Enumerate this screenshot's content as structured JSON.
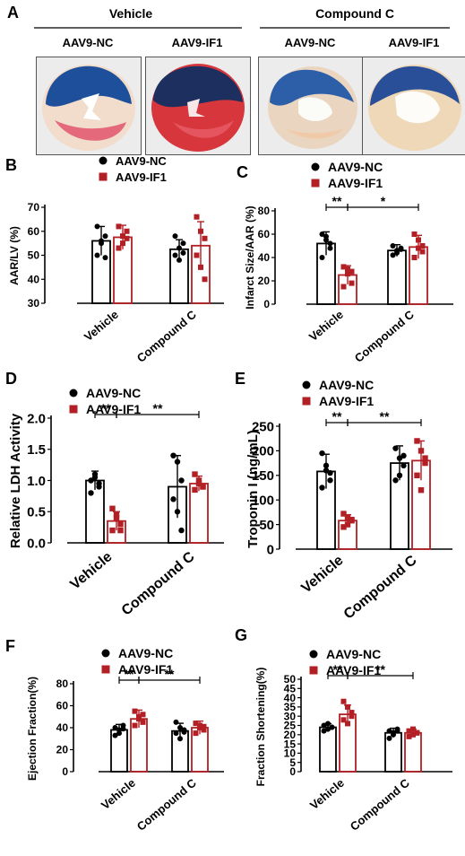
{
  "panel_a": {
    "label": "A",
    "groups": [
      {
        "name": "Vehicle",
        "hearts": [
          "AAV9-NC",
          "AAV9-IF1"
        ]
      },
      {
        "name": "Compound C",
        "hearts": [
          "AAV9-NC",
          "AAV9-IF1"
        ]
      }
    ]
  },
  "colors": {
    "nc": "#000000",
    "if1": "#b21f24"
  },
  "chart_data": [
    {
      "panel": "B",
      "type": "bar",
      "ylabel": "AAR/LV (%)",
      "ylim": [
        30,
        70
      ],
      "yticks": [
        30,
        40,
        50,
        60,
        70
      ],
      "categories": [
        "Vehicle",
        "Compound C"
      ],
      "series": [
        {
          "name": "AAV9-NC",
          "values": [
            56,
            52.5
          ],
          "sd": [
            6,
            4
          ],
          "points": [
            [
              62,
              56,
              58,
              50,
              55,
              49
            ],
            [
              58,
              53,
              55,
              50,
              48,
              51
            ]
          ]
        },
        {
          "name": "AAV9-IF1",
          "values": [
            57.5,
            54
          ],
          "sd": [
            5,
            10
          ],
          "points": [
            [
              62,
              55,
              60,
              53,
              58,
              57
            ],
            [
              66,
              60,
              57,
              50,
              45,
              40
            ]
          ]
        }
      ],
      "significance": []
    },
    {
      "panel": "C",
      "type": "bar",
      "ylabel": "Infarct Size/AAR (%)",
      "ylim": [
        0,
        80
      ],
      "yticks": [
        0,
        20,
        40,
        60,
        80
      ],
      "categories": [
        "Vehicle",
        "Compound C"
      ],
      "series": [
        {
          "name": "AAV9-NC",
          "values": [
            52,
            46
          ],
          "sd": [
            10,
            5
          ],
          "points": [
            [
              60,
              55,
              48,
              40,
              58,
              52
            ],
            [
              50,
              44,
              48,
              42,
              46,
              47
            ]
          ]
        },
        {
          "name": "AAV9-IF1",
          "values": [
            25,
            49
          ],
          "sd": [
            8,
            10
          ],
          "points": [
            [
              32,
              26,
              18,
              15,
              30,
              28
            ],
            [
              60,
              55,
              45,
              40,
              48,
              50
            ]
          ]
        }
      ],
      "significance": [
        {
          "from": [
            0,
            0
          ],
          "to": [
            0,
            1
          ],
          "label": "**"
        },
        {
          "from": [
            0,
            1
          ],
          "to": [
            1,
            1
          ],
          "label": "*"
        }
      ]
    },
    {
      "panel": "D",
      "type": "bar",
      "ylabel": "Relative LDH Activity",
      "ylim": [
        0,
        2.0
      ],
      "yticks": [
        0.0,
        0.5,
        1.0,
        1.5,
        2.0
      ],
      "categories": [
        "Vehicle",
        "Compound C"
      ],
      "series": [
        {
          "name": "AAV9-NC",
          "values": [
            1.0,
            0.9
          ],
          "sd": [
            0.15,
            0.5
          ],
          "points": [
            [
              1.0,
              1.1,
              0.9,
              0.8,
              1.05,
              0.95
            ],
            [
              1.4,
              1.3,
              1.0,
              0.7,
              0.5,
              0.2
            ]
          ]
        },
        {
          "name": "AAV9-IF1",
          "values": [
            0.35,
            0.95
          ],
          "sd": [
            0.15,
            0.12
          ],
          "points": [
            [
              0.55,
              0.45,
              0.3,
              0.2,
              0.4,
              0.2
            ],
            [
              1.1,
              1.0,
              0.9,
              0.85,
              0.95,
              0.9
            ]
          ]
        }
      ],
      "significance": [
        {
          "from": [
            0,
            0
          ],
          "to": [
            0,
            1
          ],
          "label": "**"
        },
        {
          "from": [
            0,
            1
          ],
          "to": [
            1,
            1
          ],
          "label": "**"
        }
      ]
    },
    {
      "panel": "E",
      "type": "bar",
      "ylabel": "Troponin I (ng/mL)",
      "ylim": [
        0,
        250
      ],
      "yticks": [
        0,
        50,
        100,
        150,
        200,
        250
      ],
      "categories": [
        "Vehicle",
        "Compound C"
      ],
      "series": [
        {
          "name": "AAV9-NC",
          "values": [
            158,
            175
          ],
          "sd": [
            35,
            35
          ],
          "points": [
            [
              195,
              170,
              155,
              125,
              160,
              140
            ],
            [
              205,
              185,
              170,
              140,
              150,
              190
            ]
          ]
        },
        {
          "name": "AAV9-IF1",
          "values": [
            58,
            180
          ],
          "sd": [
            12,
            40
          ],
          "points": [
            [
              72,
              65,
              58,
              45,
              50,
              60
            ],
            [
              220,
              200,
              175,
              150,
              120,
              185
            ]
          ]
        }
      ],
      "significance": [
        {
          "from": [
            0,
            0
          ],
          "to": [
            0,
            1
          ],
          "label": "**"
        },
        {
          "from": [
            0,
            1
          ],
          "to": [
            1,
            1
          ],
          "label": "**"
        }
      ]
    },
    {
      "panel": "F",
      "type": "bar",
      "ylabel": "Ejection Fraction(%)",
      "ylim": [
        0,
        80
      ],
      "yticks": [
        0,
        20,
        40,
        60,
        80
      ],
      "categories": [
        "Vehicle",
        "Compound C"
      ],
      "series": [
        {
          "name": "AAV9-NC",
          "values": [
            38,
            37
          ],
          "sd": [
            5,
            7
          ],
          "points": [
            [
              40,
              35,
              42,
              33,
              38,
              39
            ],
            [
              45,
              30,
              38,
              35,
              40,
              36
            ]
          ]
        },
        {
          "name": "AAV9-IF1",
          "values": [
            48,
            40
          ],
          "sd": [
            8,
            6
          ],
          "points": [
            [
              55,
              50,
              45,
              42,
              48,
              52
            ],
            [
              44,
              40,
              38,
              35,
              42,
              41
            ]
          ]
        }
      ],
      "significance": [
        {
          "from": [
            0,
            0
          ],
          "to": [
            0,
            1
          ],
          "label": "**"
        },
        {
          "from": [
            0,
            1
          ],
          "to": [
            1,
            1
          ],
          "label": "**"
        }
      ]
    },
    {
      "panel": "G",
      "type": "bar",
      "ylabel": "Fraction  Shortening(%)",
      "ylim": [
        0,
        50
      ],
      "yticks": [
        0,
        5,
        10,
        15,
        20,
        25,
        30,
        35,
        40,
        45,
        50
      ],
      "categories": [
        "Vehicle",
        "Compound C"
      ],
      "series": [
        {
          "name": "AAV9-NC",
          "values": [
            24,
            21
          ],
          "sd": [
            2,
            2.5
          ],
          "points": [
            [
              25,
              23,
              24,
              22,
              26,
              24
            ],
            [
              22,
              20,
              23,
              18,
              21,
              22
            ]
          ]
        },
        {
          "name": "AAV9-IF1",
          "values": [
            31,
            21
          ],
          "sd": [
            5,
            2
          ],
          "points": [
            [
              38,
              35,
              30,
              28,
              26,
              32
            ],
            [
              22,
              20,
              21,
              19,
              23,
              21
            ]
          ]
        }
      ],
      "significance": [
        {
          "from": [
            0,
            0
          ],
          "to": [
            0,
            1
          ],
          "label": "**"
        },
        {
          "from": [
            0,
            1
          ],
          "to": [
            1,
            1
          ],
          "label": "**"
        }
      ]
    }
  ]
}
